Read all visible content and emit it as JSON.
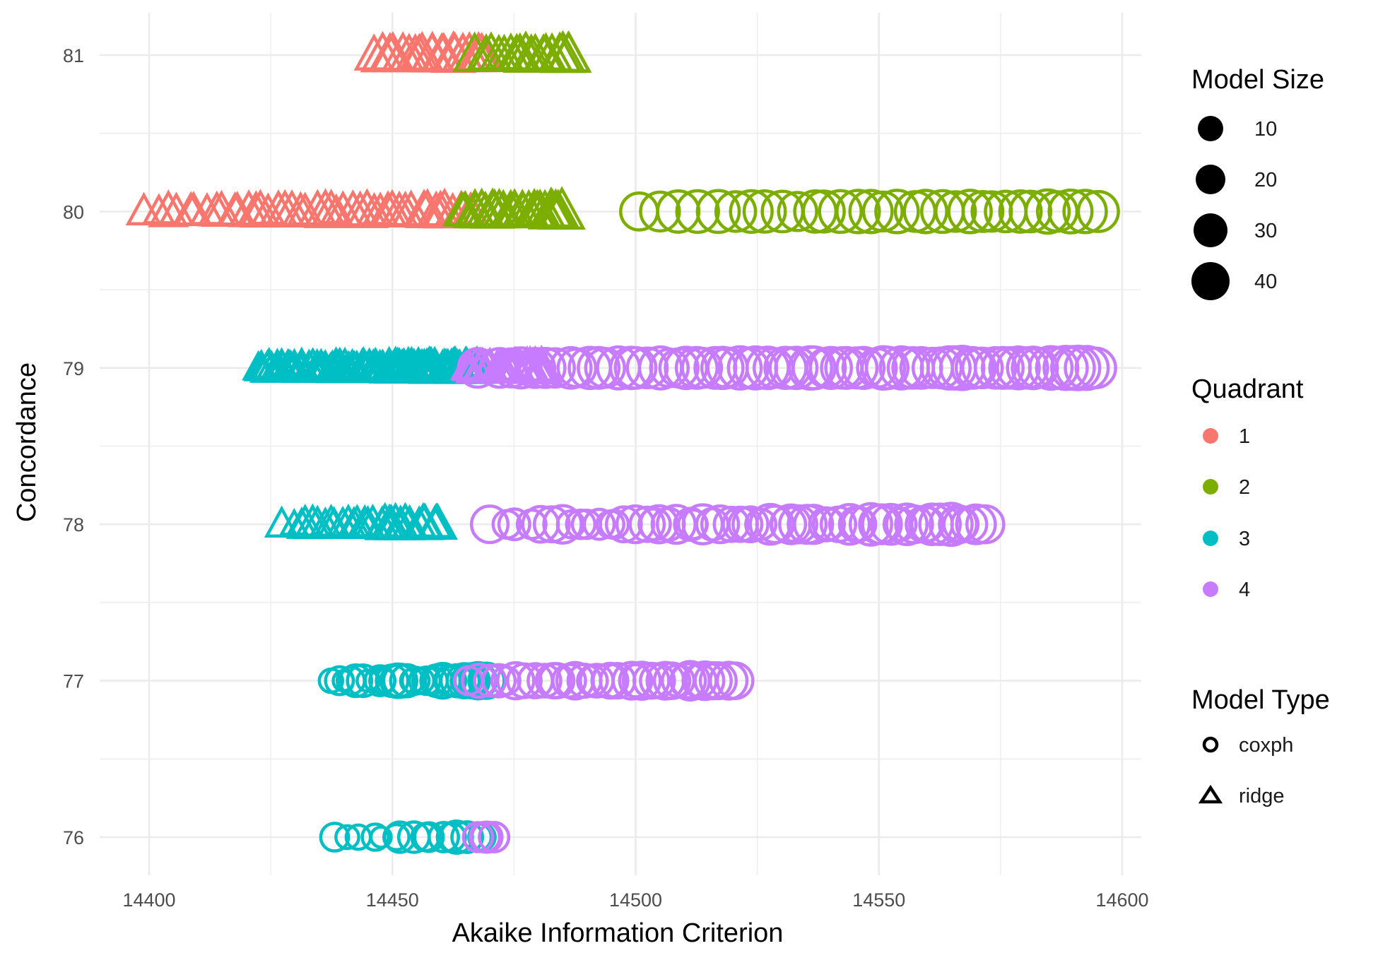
{
  "chart_data": {
    "type": "scatter",
    "xlabel": "Akaike Information Criterion",
    "ylabel": "Concordance",
    "xlim": [
      14391,
      14601
    ],
    "ylim": [
      75.77,
      81.18
    ],
    "x_ticks": [
      14400,
      14450,
      14500,
      14550,
      14600
    ],
    "y_ticks": [
      76,
      77,
      78,
      79,
      80,
      81
    ],
    "grid": true,
    "legend_position": "right",
    "colors": {
      "1": "#F8766D",
      "2": "#7CAE00",
      "3": "#00BFC4",
      "4": "#C77CFF"
    },
    "legends": {
      "size": {
        "title": "Model Size",
        "labels": [
          "10",
          "20",
          "30",
          "40"
        ],
        "values": [
          10,
          20,
          30,
          40
        ]
      },
      "quadrant": {
        "title": "Quadrant",
        "labels": [
          "1",
          "2",
          "3",
          "4"
        ]
      },
      "model_type": {
        "title": "Model Type",
        "labels": [
          "coxph",
          "ridge"
        ],
        "shapes": [
          "circle",
          "triangle"
        ]
      }
    },
    "series": [
      {
        "quadrant": 1,
        "model_type": "ridge",
        "concordance": 81,
        "aic_range": [
          14446,
          14468
        ],
        "size_range": [
          20,
          40
        ],
        "n": 20
      },
      {
        "quadrant": 2,
        "model_type": "ridge",
        "concordance": 81,
        "aic_range": [
          14467,
          14487
        ],
        "size_range": [
          20,
          40
        ],
        "n": 18
      },
      {
        "quadrant": 1,
        "model_type": "ridge",
        "concordance": 80,
        "aic_range": [
          14399,
          14468
        ],
        "size_range": [
          8,
          35
        ],
        "n": 45
      },
      {
        "quadrant": 2,
        "model_type": "ridge",
        "concordance": 80,
        "aic_range": [
          14464,
          14485
        ],
        "size_range": [
          15,
          40
        ],
        "n": 25
      },
      {
        "quadrant": 2,
        "model_type": "coxph",
        "concordance": 80,
        "aic_range": [
          14500,
          14595
        ],
        "size_range": [
          25,
          40
        ],
        "n": 32
      },
      {
        "quadrant": 3,
        "model_type": "ridge",
        "concordance": 79,
        "aic_range": [
          14422,
          14468
        ],
        "size_range": [
          5,
          30
        ],
        "n": 110
      },
      {
        "quadrant": 4,
        "model_type": "ridge",
        "concordance": 79,
        "aic_range": [
          14465,
          14481
        ],
        "size_range": [
          10,
          30
        ],
        "n": 30
      },
      {
        "quadrant": 4,
        "model_type": "coxph",
        "concordance": 79,
        "aic_range": [
          14468,
          14594
        ],
        "size_range": [
          25,
          40
        ],
        "n": 70
      },
      {
        "quadrant": 3,
        "model_type": "ridge",
        "concordance": 78,
        "aic_range": [
          14428,
          14460
        ],
        "size_range": [
          8,
          30
        ],
        "n": 30
      },
      {
        "quadrant": 4,
        "model_type": "coxph",
        "concordance": 78,
        "aic_range": [
          14470,
          14572
        ],
        "size_range": [
          8,
          38
        ],
        "n": 60
      },
      {
        "quadrant": 3,
        "model_type": "coxph",
        "concordance": 77,
        "aic_range": [
          14437,
          14470
        ],
        "size_range": [
          2,
          25
        ],
        "n": 30
      },
      {
        "quadrant": 4,
        "model_type": "coxph",
        "concordance": 77,
        "aic_range": [
          14465,
          14520
        ],
        "size_range": [
          10,
          30
        ],
        "n": 35
      },
      {
        "quadrant": 3,
        "model_type": "coxph",
        "concordance": 76,
        "aic_range": [
          14438,
          14469
        ],
        "size_range": [
          2,
          20
        ],
        "n": 16
      },
      {
        "quadrant": 4,
        "model_type": "coxph",
        "concordance": 76,
        "aic_range": [
          14468,
          14471
        ],
        "size_range": [
          10,
          15
        ],
        "n": 4
      }
    ]
  }
}
